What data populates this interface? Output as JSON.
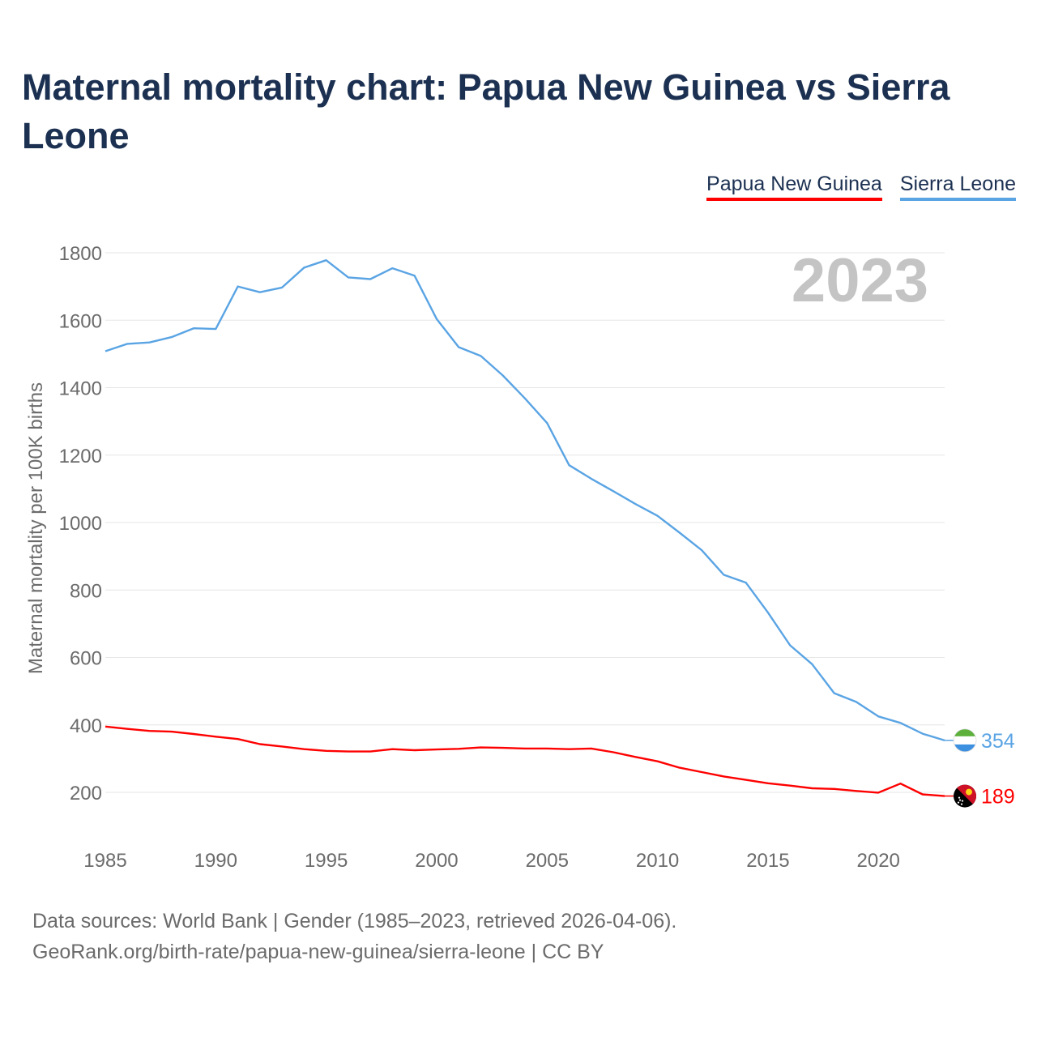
{
  "title": "Maternal mortality chart: Papua New Guinea vs Sierra Leone",
  "legend": [
    {
      "label": "Papua New Guinea",
      "color": "#ff0000"
    },
    {
      "label": "Sierra Leone",
      "color": "#5aa4e4"
    }
  ],
  "year_label": "2023",
  "footer": {
    "line1": "Data sources: World Bank | Gender (1985–2023, retrieved 2026-04-06).",
    "line2": "GeoRank.org/birth-rate/papua-new-guinea/sierra-leone | CC BY"
  },
  "chart_data": {
    "type": "line",
    "title": "Maternal mortality chart: Papua New Guinea vs Sierra Leone",
    "xlabel": "",
    "ylabel": "Maternal mortality per 100K births",
    "xlim": [
      1985,
      2023
    ],
    "ylim": [
      100,
      1850
    ],
    "yticks": [
      200,
      400,
      600,
      800,
      1000,
      1200,
      1400,
      1600,
      1800
    ],
    "xticks": [
      1985,
      1990,
      1995,
      2000,
      2005,
      2010,
      2015,
      2020
    ],
    "x": [
      1985,
      1986,
      1987,
      1988,
      1989,
      1990,
      1991,
      1992,
      1993,
      1994,
      1995,
      1996,
      1997,
      1998,
      1999,
      2000,
      2001,
      2002,
      2003,
      2004,
      2005,
      2006,
      2007,
      2008,
      2009,
      2010,
      2011,
      2012,
      2013,
      2014,
      2015,
      2016,
      2017,
      2018,
      2019,
      2020,
      2021,
      2022,
      2023
    ],
    "series": [
      {
        "name": "Sierra Leone",
        "color": "#5aa4e4",
        "end_label": "354",
        "values": [
          1508,
          1530,
          1534,
          1550,
          1576,
          1574,
          1700,
          1683,
          1697,
          1756,
          1778,
          1727,
          1722,
          1754,
          1732,
          1604,
          1520,
          1494,
          1436,
          1368,
          1295,
          1170,
          1130,
          1093,
          1055,
          1020,
          970,
          918,
          845,
          822,
          733,
          636,
          580,
          494,
          468,
          425,
          406,
          374,
          354
        ]
      },
      {
        "name": "Papua New Guinea",
        "color": "#ff0000",
        "end_label": "189",
        "values": [
          395,
          388,
          382,
          380,
          373,
          365,
          358,
          343,
          336,
          328,
          323,
          321,
          321,
          328,
          325,
          327,
          329,
          333,
          332,
          330,
          330,
          328,
          330,
          319,
          305,
          292,
          273,
          260,
          247,
          237,
          227,
          220,
          212,
          210,
          204,
          199,
          226,
          194,
          189
        ]
      }
    ]
  }
}
